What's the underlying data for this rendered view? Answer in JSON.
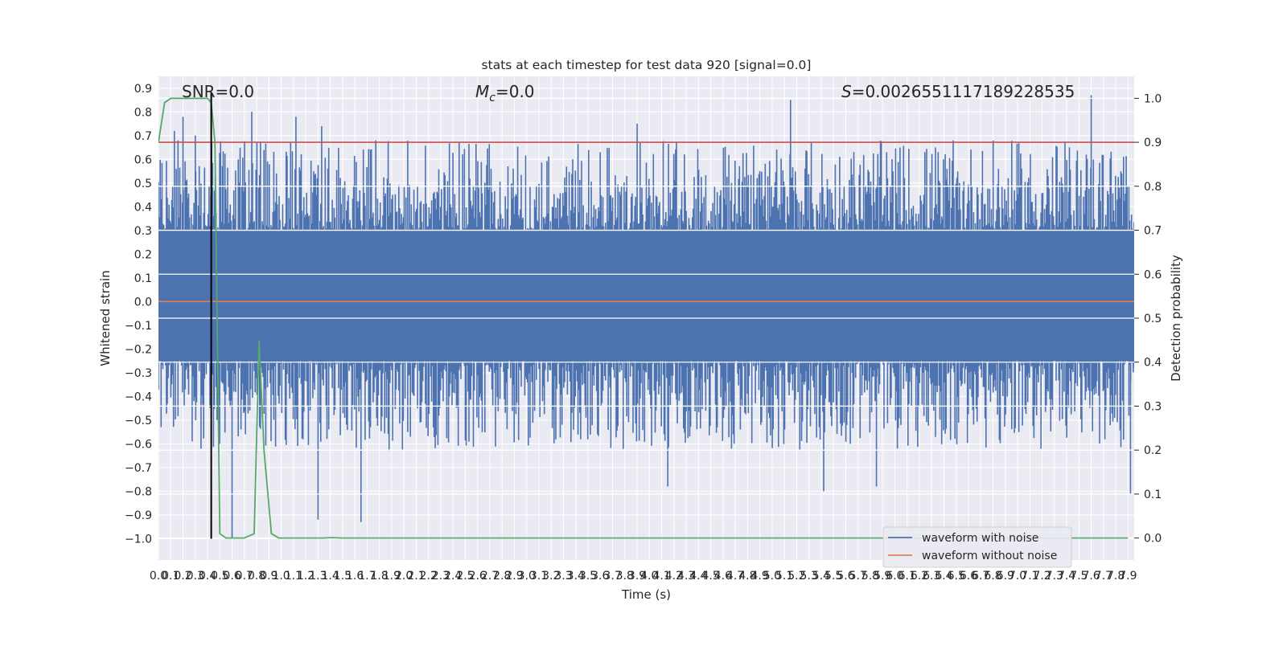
{
  "chart_data": {
    "type": "line",
    "title": "stats at each timestep for test data 920 [signal=0.0]",
    "xlabel": "Time (s)",
    "ylabel_left": "Whitened strain",
    "ylabel_right": "Detection probability",
    "xlim": [
      0.0,
      7.95
    ],
    "ylim_left": [
      -1.09,
      0.95
    ],
    "ylim_right": [
      -0.05,
      1.05
    ],
    "x_ticks": [
      "0.0",
      "0.1",
      "0.2",
      "0.3",
      "0.4",
      "0.5",
      "0.6",
      "0.7",
      "0.8",
      "0.9",
      "1.0",
      "1.1",
      "1.2",
      "1.3",
      "1.4",
      "1.5",
      "1.6",
      "1.7",
      "1.8",
      "1.9",
      "2.0",
      "2.1",
      "2.2",
      "2.3",
      "2.4",
      "2.5",
      "2.6",
      "2.7",
      "2.8",
      "2.9",
      "3.0",
      "3.1",
      "3.2",
      "3.3",
      "3.4",
      "3.5",
      "3.6",
      "3.7",
      "3.8",
      "3.9",
      "4.0",
      "4.1",
      "4.2",
      "4.3",
      "4.4",
      "4.5",
      "4.6",
      "4.7",
      "4.8",
      "4.9",
      "5.0",
      "5.1",
      "5.2",
      "5.3",
      "5.4",
      "5.5",
      "5.6",
      "5.7",
      "5.8",
      "5.9",
      "6.0",
      "6.1",
      "6.2",
      "6.3",
      "6.4",
      "6.5",
      "6.6",
      "6.7",
      "6.8",
      "6.9",
      "7.0",
      "7.1",
      "7.2",
      "7.3",
      "7.4",
      "7.5",
      "7.6",
      "7.7",
      "7.8",
      "7.9"
    ],
    "y_ticks_left": [
      "−1.0",
      "−0.9",
      "−0.8",
      "−0.7",
      "−0.6",
      "−0.5",
      "−0.4",
      "−0.3",
      "−0.2",
      "−0.1",
      "0.0",
      "0.1",
      "0.2",
      "0.3",
      "0.4",
      "0.5",
      "0.6",
      "0.7",
      "0.8",
      "0.9"
    ],
    "y_ticks_right": [
      "0.0",
      "0.1",
      "0.2",
      "0.3",
      "0.4",
      "0.5",
      "0.6",
      "0.7",
      "0.8",
      "0.9",
      "1.0"
    ],
    "annotations": {
      "snr": "SNR=0.0",
      "mc_symbol": "M",
      "mc_sub": "c",
      "mc_value": "=0.0",
      "s_symbol": "S",
      "s_value": "=0.002655111718922853​5"
    },
    "series": [
      {
        "name": "waveform with noise",
        "axis": "left",
        "color": "#4c72b0",
        "kind": "dense-noise",
        "band_low": -0.25,
        "band_high": 0.3,
        "notable_peaks": [
          {
            "x": 0.13,
            "y": 0.72
          },
          {
            "x": 0.2,
            "y": 0.78
          },
          {
            "x": 0.3,
            "y": 0.7
          },
          {
            "x": 0.76,
            "y": 0.8
          },
          {
            "x": 1.12,
            "y": 0.78
          },
          {
            "x": 1.33,
            "y": 0.74
          },
          {
            "x": 3.9,
            "y": 0.75
          },
          {
            "x": 5.15,
            "y": 0.85
          },
          {
            "x": 7.6,
            "y": 0.87
          }
        ],
        "notable_troughs": [
          {
            "x": 0.6,
            "y": -1.0
          },
          {
            "x": 1.3,
            "y": -0.92
          },
          {
            "x": 1.65,
            "y": -0.93
          },
          {
            "x": 4.15,
            "y": -0.78
          },
          {
            "x": 5.42,
            "y": -0.8
          },
          {
            "x": 5.85,
            "y": -0.78
          },
          {
            "x": 7.92,
            "y": -0.81
          }
        ]
      },
      {
        "name": "waveform without noise",
        "axis": "left",
        "color": "#dd8452",
        "x": [
          0.0,
          7.95
        ],
        "y": [
          0.0,
          0.0
        ]
      },
      {
        "name": "",
        "axis": "right",
        "color": "#55a868",
        "x": [
          0.0,
          0.05,
          0.1,
          0.2,
          0.3,
          0.4,
          0.43,
          0.46,
          0.5,
          0.55,
          0.6,
          0.7,
          0.78,
          0.82,
          0.86,
          0.92,
          0.98,
          1.1,
          1.2,
          1.35,
          1.4,
          1.5,
          2.0,
          3.0,
          4.0,
          5.0,
          6.0,
          7.0,
          7.5,
          7.9
        ],
        "y": [
          0.9,
          0.99,
          1.0,
          1.0,
          1.0,
          1.0,
          0.99,
          0.9,
          0.01,
          0.0,
          0.0,
          0.0,
          0.01,
          0.45,
          0.2,
          0.01,
          0.0,
          0.0,
          0.0,
          0.0,
          0.001,
          0.0,
          0.0,
          0.0,
          0.0,
          0.0,
          0.0,
          0.0,
          0.0,
          0.0
        ]
      }
    ],
    "threshold_line": {
      "axis": "right",
      "y": 0.9,
      "color": "#c44e52"
    },
    "marker_line": {
      "axis": "left",
      "x": 0.43,
      "y_from": -1.0,
      "y_to": 0.88,
      "color": "#000000"
    },
    "legend": {
      "placement": "lower-right",
      "entries": [
        {
          "label": "waveform with noise",
          "color": "#4c72b0"
        },
        {
          "label": "waveform without noise",
          "color": "#dd8452"
        }
      ]
    },
    "style": {
      "plot_bg": "#eaeaf2",
      "grid": true,
      "grid_color": "#ffffff"
    }
  }
}
